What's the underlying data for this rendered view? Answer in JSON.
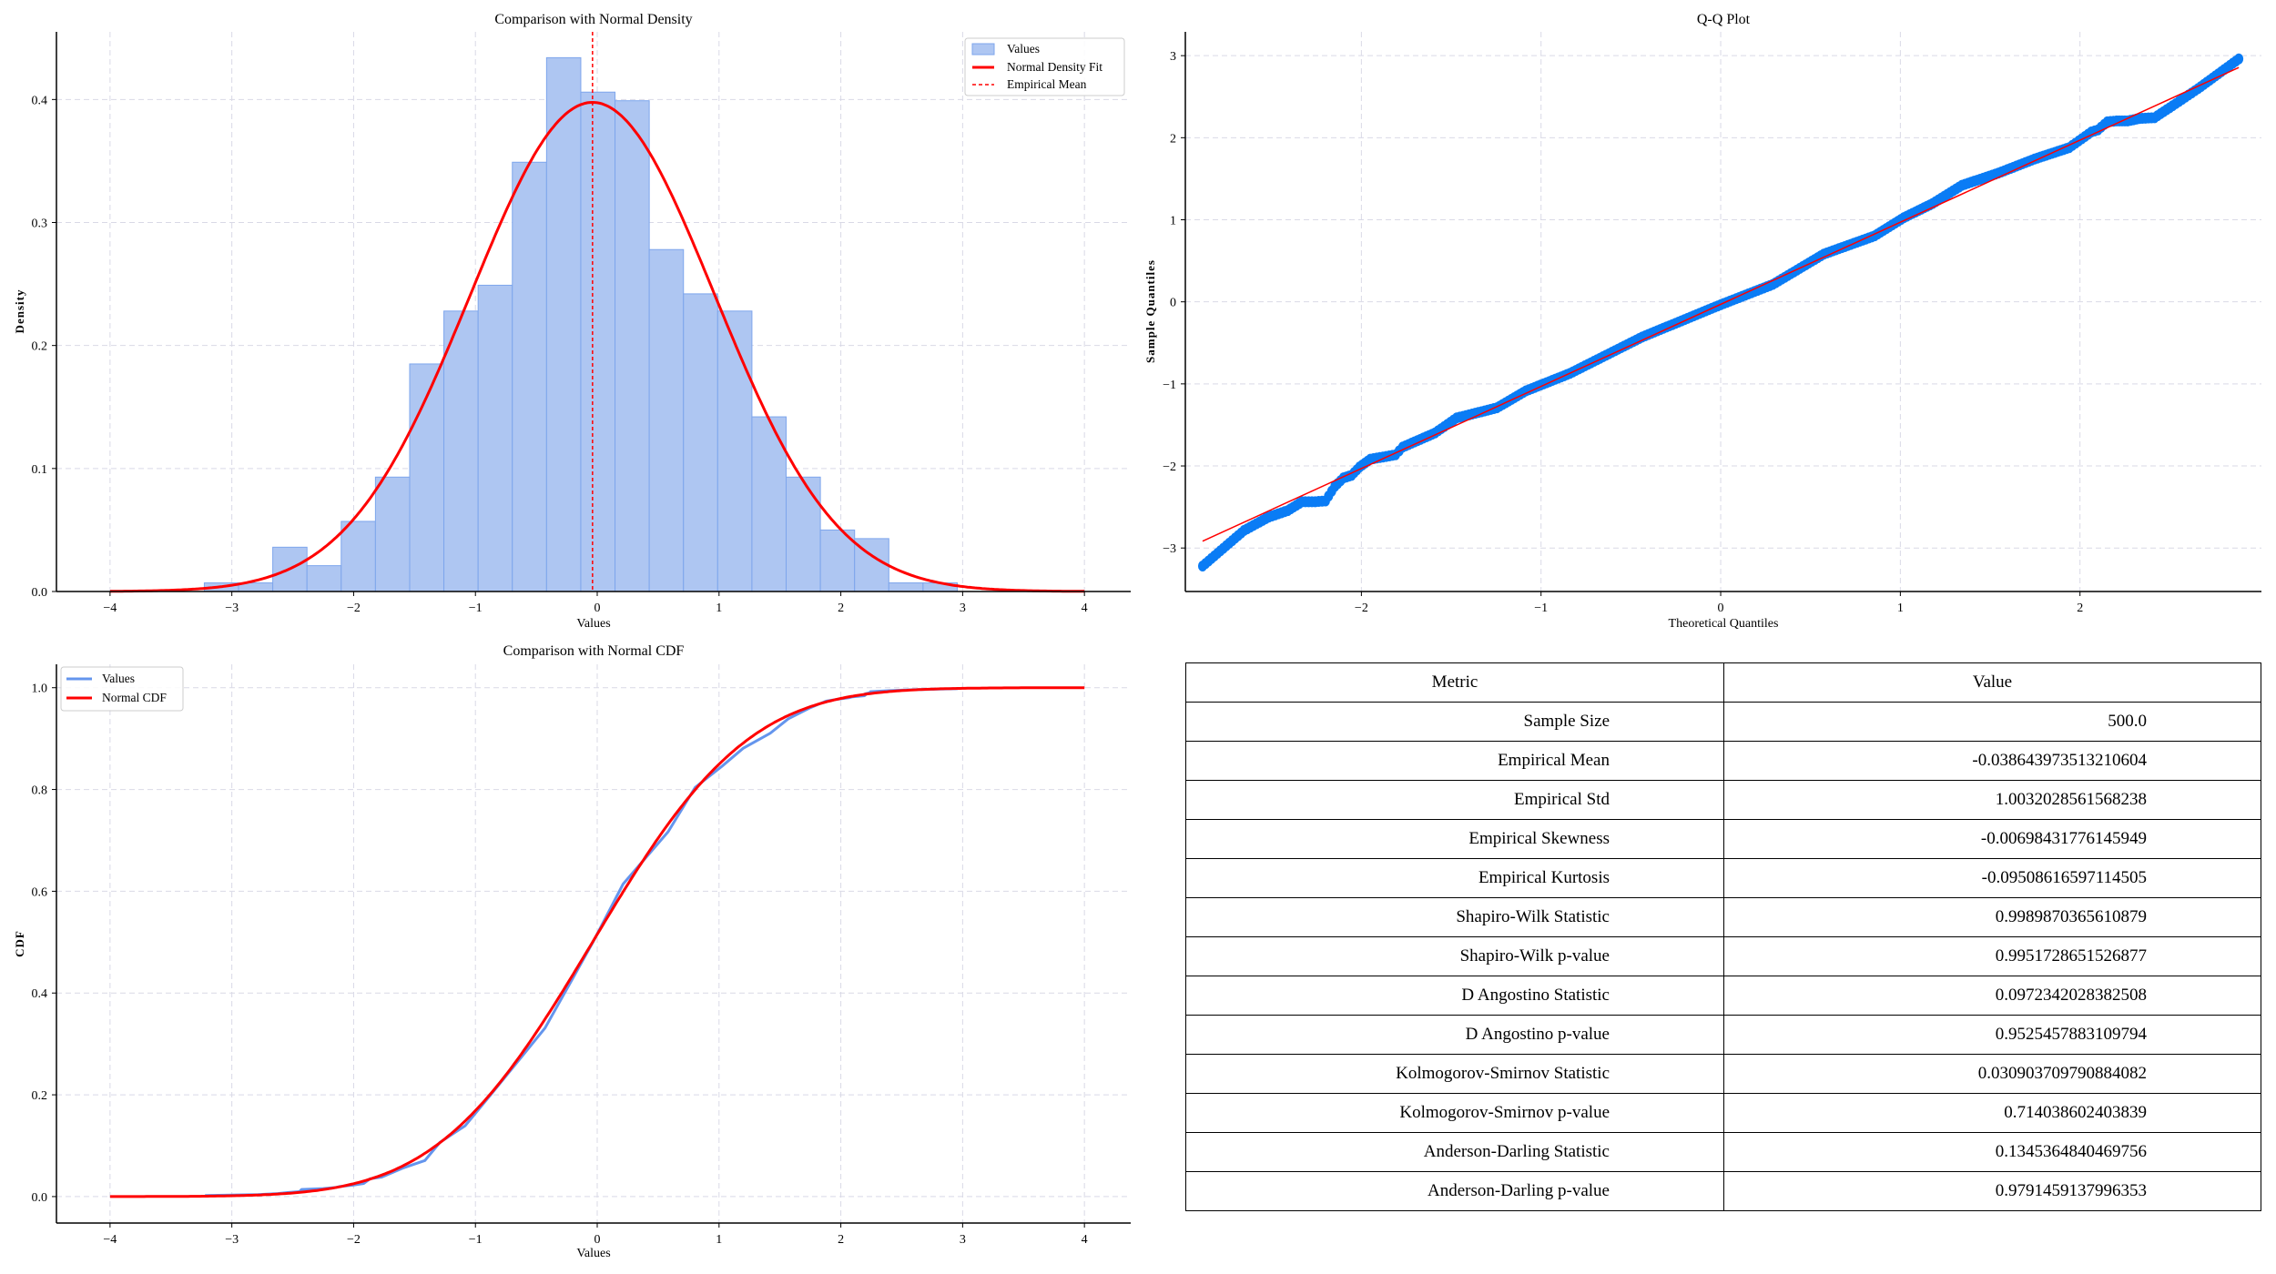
{
  "colors": {
    "hist_fill": "#aec6f2",
    "hist_edge": "#7ea6ec",
    "normal_fit": "#ff0000",
    "qq_points": "#0a7cf5",
    "ecdf": "#6495ed",
    "grid": "#d9d9e6"
  },
  "chart_data": [
    {
      "type": "bar",
      "title": "Comparison with Normal Density",
      "xlabel": "Values",
      "ylabel": "Density",
      "xlim": [
        -4.44,
        4.38
      ],
      "ylim": [
        0,
        0.455
      ],
      "xticks": [
        -4,
        -3,
        -2,
        -1,
        0,
        1,
        2,
        3,
        4
      ],
      "xtick_labels": [
        "−4",
        "−3",
        "−2",
        "−1",
        "0",
        "1",
        "2",
        "3",
        "4"
      ],
      "yticks": [
        0,
        0.1,
        0.2,
        0.3,
        0.4
      ],
      "ytick_labels": [
        "0.0",
        "0.1",
        "0.2",
        "0.3",
        "0.4"
      ],
      "grid": true,
      "legend_position": "top-right",
      "histogram": {
        "name": "Values",
        "bin_start": -3.226,
        "bin_width": 0.281,
        "densities": [
          0.007,
          0.007,
          0.036,
          0.021,
          0.057,
          0.093,
          0.185,
          0.228,
          0.249,
          0.349,
          0.434,
          0.406,
          0.399,
          0.278,
          0.242,
          0.228,
          0.142,
          0.093,
          0.05,
          0.043,
          0.007,
          0.007
        ]
      },
      "normal_fit": {
        "name": "Normal Density Fit",
        "mean": -0.0386,
        "std": 1.0032,
        "x_range": [
          -4,
          4
        ]
      },
      "mean_line": {
        "name": "Empirical Mean",
        "x": -0.0386
      }
    },
    {
      "type": "scatter",
      "title": "Q-Q Plot",
      "xlabel": "Theoretical Quantiles",
      "ylabel": "Sample Quantiles",
      "xlim": [
        -2.98,
        3.01
      ],
      "ylim": [
        -3.53,
        3.29
      ],
      "xticks": [
        -2,
        -1,
        0,
        1,
        2
      ],
      "xtick_labels": [
        "−2",
        "−1",
        "0",
        "1",
        "2"
      ],
      "yticks": [
        -3,
        -2,
        -1,
        0,
        1,
        2,
        3
      ],
      "ytick_labels": [
        "−3",
        "−2",
        "−1",
        "0",
        "1",
        "2",
        "3"
      ],
      "grid": true,
      "points": [
        [
          -2.884,
          -3.22
        ],
        [
          -2.653,
          -2.786
        ],
        [
          -2.516,
          -2.623
        ],
        [
          -2.41,
          -2.544
        ],
        [
          -2.33,
          -2.436
        ],
        [
          -2.257,
          -2.436
        ],
        [
          -2.2,
          -2.426
        ],
        [
          -2.148,
          -2.249
        ],
        [
          -2.1,
          -2.145
        ],
        [
          -2.055,
          -2.115
        ],
        [
          -2.01,
          -2.012
        ],
        [
          -1.95,
          -1.918
        ],
        [
          -1.81,
          -1.864
        ],
        [
          -1.77,
          -1.77
        ],
        [
          -1.59,
          -1.598
        ],
        [
          -1.47,
          -1.415
        ],
        [
          -1.246,
          -1.292
        ],
        [
          -1.084,
          -1.085
        ],
        [
          -0.84,
          -0.873
        ],
        [
          -0.437,
          -0.429
        ],
        [
          0.0,
          -0.035
        ],
        [
          0.29,
          0.212
        ],
        [
          0.574,
          0.582
        ],
        [
          0.857,
          0.804
        ],
        [
          1.02,
          1.026
        ],
        [
          1.18,
          1.198
        ],
        [
          1.343,
          1.42
        ],
        [
          1.545,
          1.568
        ],
        [
          1.747,
          1.74
        ],
        [
          1.94,
          1.879
        ],
        [
          2.01,
          1.987
        ],
        [
          2.063,
          2.07
        ],
        [
          2.1,
          2.095
        ],
        [
          2.152,
          2.194
        ],
        [
          2.204,
          2.204
        ],
        [
          2.265,
          2.204
        ],
        [
          2.33,
          2.234
        ],
        [
          2.415,
          2.244
        ],
        [
          2.516,
          2.39
        ],
        [
          2.657,
          2.598
        ],
        [
          2.884,
          2.96
        ]
      ],
      "reference_line": {
        "x": [
          -2.884,
          2.884
        ],
        "y": [
          -2.916,
          2.855
        ]
      }
    },
    {
      "type": "line",
      "title": "Comparison with Normal CDF",
      "xlabel": "Values",
      "ylabel": "CDF",
      "xlim": [
        -4.44,
        4.38
      ],
      "ylim": [
        -0.052,
        1.046
      ],
      "xticks": [
        -4,
        -3,
        -2,
        -1,
        0,
        1,
        2,
        3,
        4
      ],
      "xtick_labels": [
        "−4",
        "−3",
        "−2",
        "−1",
        "0",
        "1",
        "2",
        "3",
        "4"
      ],
      "yticks": [
        0,
        0.2,
        0.4,
        0.6,
        0.8,
        1.0
      ],
      "ytick_labels": [
        "0.0",
        "0.2",
        "0.4",
        "0.6",
        "0.8",
        "1.0"
      ],
      "grid": true,
      "legend_position": "top-left",
      "series": [
        {
          "name": "Values"
        },
        {
          "name": "Normal CDF",
          "mean": -0.0386,
          "std": 1.0032,
          "x_range": [
            -4,
            4
          ]
        }
      ]
    },
    {
      "type": "table",
      "header": {
        "metric": "Metric",
        "value": "Value"
      },
      "rows": [
        {
          "metric": "Sample Size",
          "value": "500.0"
        },
        {
          "metric": "Empirical Mean",
          "value": "-0.038643973513210604"
        },
        {
          "metric": "Empirical Std",
          "value": "1.0032028561568238"
        },
        {
          "metric": "Empirical Skewness",
          "value": "-0.00698431776145949"
        },
        {
          "metric": "Empirical Kurtosis",
          "value": "-0.09508616597114505"
        },
        {
          "metric": "Shapiro-Wilk Statistic",
          "value": "0.9989870365610879"
        },
        {
          "metric": "Shapiro-Wilk p-value",
          "value": "0.9951728651526877"
        },
        {
          "metric": "D Angostino Statistic",
          "value": "0.0972342028382508"
        },
        {
          "metric": "D Angostino p-value",
          "value": "0.9525457883109794"
        },
        {
          "metric": "Kolmogorov-Smirnov Statistic",
          "value": "0.030903709790884082"
        },
        {
          "metric": "Kolmogorov-Smirnov p-value",
          "value": "0.714038602403839"
        },
        {
          "metric": "Anderson-Darling Statistic",
          "value": "0.1345364840469756"
        },
        {
          "metric": "Anderson-Darling p-value",
          "value": "0.9791459137996353"
        }
      ]
    }
  ]
}
